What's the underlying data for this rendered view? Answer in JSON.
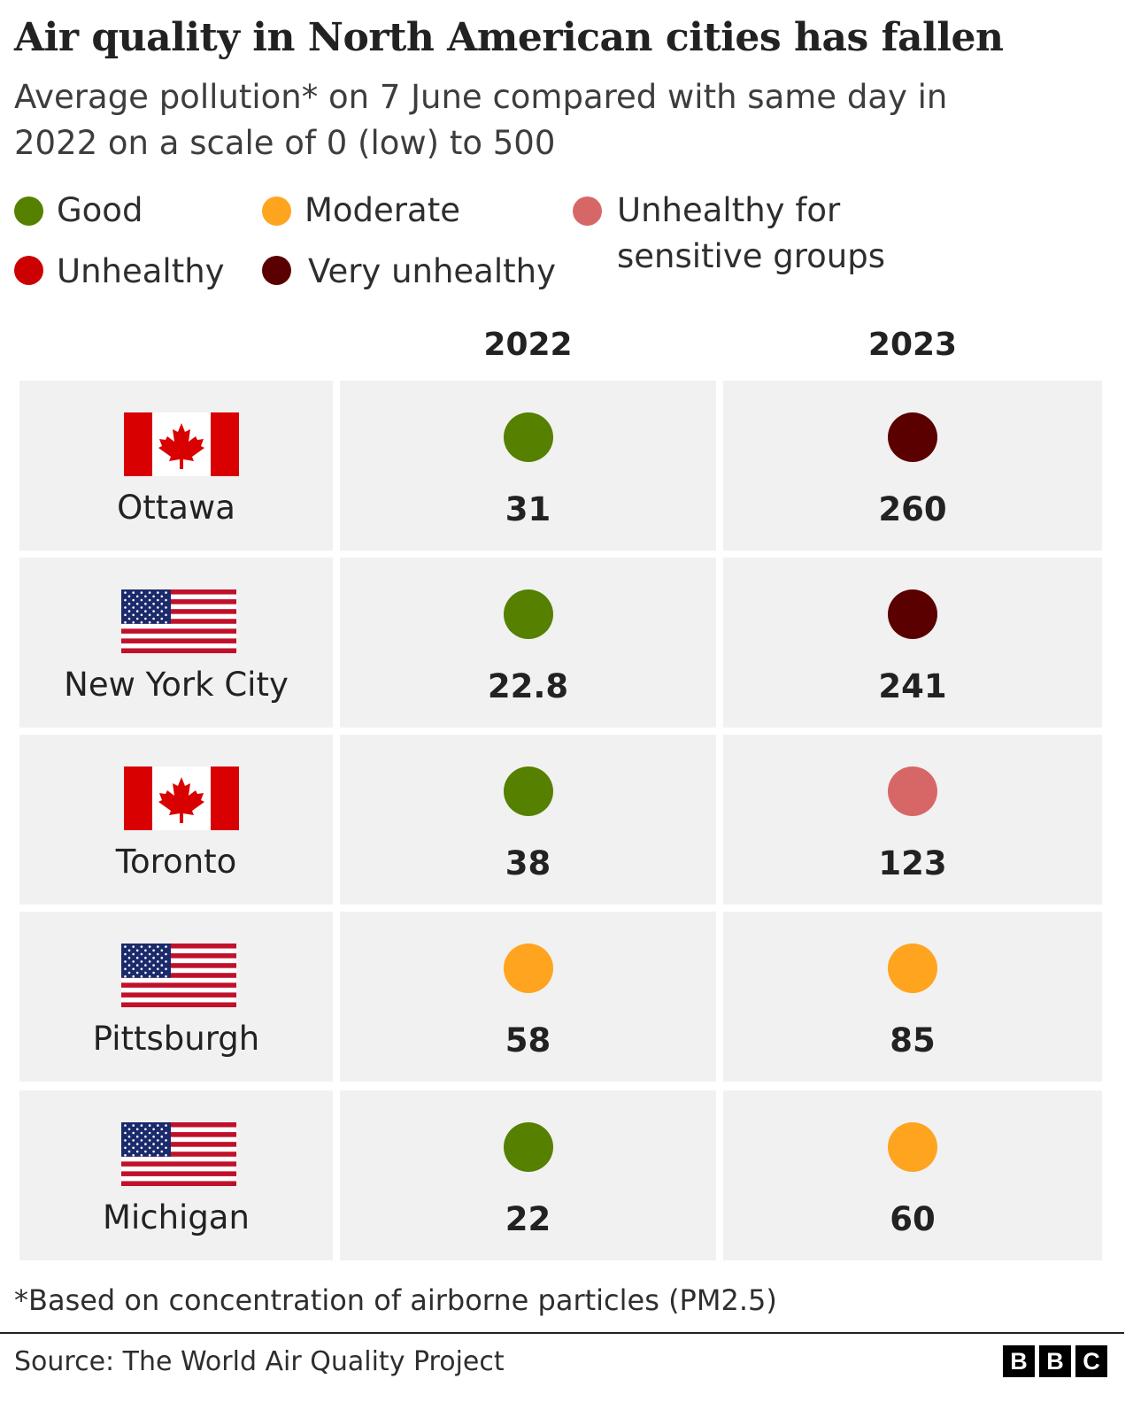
{
  "title": "Air quality in North American cities has fallen",
  "subtitle_line1": "Average pollution* on 7 June compared with same day in",
  "subtitle_line2": "2022 on a scale of 0 (low) to 500",
  "colors": {
    "good": "#558000",
    "moderate": "#ffa41f",
    "sensitive": "#d76767",
    "unhealthy": "#cc0000",
    "very_unhealthy": "#5a0000",
    "cell_bg": "#f1f1f1"
  },
  "legend": [
    {
      "label": "Good",
      "category": "good"
    },
    {
      "label": "Moderate",
      "category": "moderate"
    },
    {
      "label_line1": "Unhealthy for",
      "label_line2": "sensitive groups",
      "category": "sensitive"
    },
    {
      "label": "Unhealthy",
      "category": "unhealthy"
    },
    {
      "label": "Very unhealthy",
      "category": "very_unhealthy"
    }
  ],
  "chart_data": {
    "type": "table",
    "columns": [
      "2022",
      "2023"
    ],
    "rows": [
      {
        "city": "Ottawa",
        "flag": "canada-flag-icon",
        "values": [
          31,
          260
        ],
        "categories": [
          "good",
          "very_unhealthy"
        ]
      },
      {
        "city": "New York City",
        "flag": "usa-flag-icon",
        "values": [
          22.8,
          241
        ],
        "categories": [
          "good",
          "very_unhealthy"
        ]
      },
      {
        "city": "Toronto",
        "flag": "canada-flag-icon",
        "values": [
          38,
          123
        ],
        "categories": [
          "good",
          "sensitive"
        ]
      },
      {
        "city": "Pittsburgh",
        "flag": "usa-flag-icon",
        "values": [
          58,
          85
        ],
        "categories": [
          "moderate",
          "moderate"
        ]
      },
      {
        "city": "Michigan",
        "flag": "usa-flag-icon",
        "values": [
          22,
          60
        ],
        "categories": [
          "good",
          "moderate"
        ]
      }
    ]
  },
  "footnote": "*Based on concentration of airborne particles (PM2.5)",
  "source": "Source: The World Air Quality Project",
  "logo": {
    "letters": [
      "B",
      "B",
      "C"
    ]
  }
}
